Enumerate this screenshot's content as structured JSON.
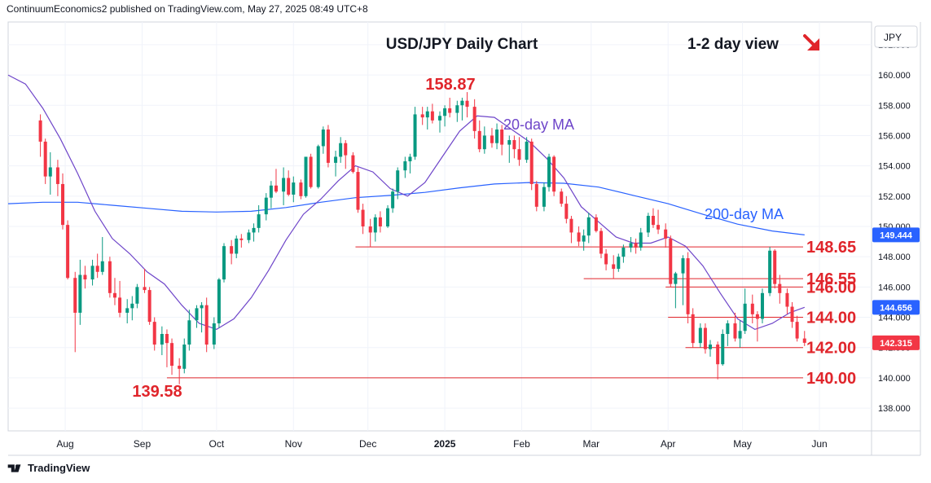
{
  "header": {
    "published": "ContinuumEconomics2 published on TradingView.com, May 27, 2025 08:49 UTC+8"
  },
  "footer": {
    "brand": "TradingView"
  },
  "colors": {
    "up": "#089981",
    "down": "#f23645",
    "ma20": "#6e45c9",
    "ma200": "#2962ff",
    "level": "#e0252b",
    "grid": "#f0f3fa"
  },
  "icons": {
    "direction": "down-right-arrow-icon",
    "logo": "tradingview-logo-icon"
  },
  "chart_data": {
    "type": "candlestick",
    "title": "USD/JPY Daily Chart",
    "view_label": "1-2 day view",
    "currency": "JPY",
    "ylim": [
      136.5,
      163.5
    ],
    "yticks": [
      138,
      140,
      142,
      144,
      146,
      148,
      150,
      152,
      154,
      156,
      158,
      160,
      162
    ],
    "xlabels": [
      "Aug",
      "Sep",
      "Oct",
      "Nov",
      "Dec",
      "2025",
      "Feb",
      "Mar",
      "Apr",
      "May",
      "Jun"
    ],
    "price_tags": [
      {
        "label": "149.444",
        "value": 149.444,
        "kind": "ma200"
      },
      {
        "label": "144.656",
        "value": 144.656,
        "kind": "ma20"
      },
      {
        "label": "142.315",
        "value": 142.315,
        "kind": "last"
      }
    ],
    "levels": [
      {
        "label": "148.65",
        "value": 148.65,
        "from": "2024-11-26"
      },
      {
        "label": "146.55",
        "value": 146.55,
        "from": "2025-02-26"
      },
      {
        "label": "146.00",
        "value": 146.0,
        "from": "2025-03-31"
      },
      {
        "label": "144.00",
        "value": 144.0,
        "from": "2025-04-01"
      },
      {
        "label": "142.00",
        "value": 142.0,
        "from": "2025-04-08"
      },
      {
        "label": "140.00",
        "value": 140.0,
        "from": "2024-09-11"
      }
    ],
    "annotations": [
      {
        "text": "158.87",
        "kind": "high"
      },
      {
        "text": "139.58",
        "kind": "low"
      },
      {
        "text": "20-day MA",
        "kind": "ma20"
      },
      {
        "text": "200-day MA",
        "kind": "ma200"
      }
    ],
    "ma20": [
      [
        "2024-07-09",
        160.0
      ],
      [
        "2024-07-16",
        159.4
      ],
      [
        "2024-07-23",
        157.8
      ],
      [
        "2024-07-30",
        155.8
      ],
      [
        "2024-08-06",
        153.5
      ],
      [
        "2024-08-13",
        151.0
      ],
      [
        "2024-08-20",
        149.2
      ],
      [
        "2024-08-27",
        148.2
      ],
      [
        "2024-09-03",
        147.0
      ],
      [
        "2024-09-10",
        146.2
      ],
      [
        "2024-09-17",
        144.8
      ],
      [
        "2024-09-24",
        143.6
      ],
      [
        "2024-10-01",
        143.2
      ],
      [
        "2024-10-08",
        143.9
      ],
      [
        "2024-10-15",
        145.3
      ],
      [
        "2024-10-22",
        147.1
      ],
      [
        "2024-10-29",
        149.1
      ],
      [
        "2024-11-05",
        150.8
      ],
      [
        "2024-11-12",
        151.8
      ],
      [
        "2024-11-19",
        153.0
      ],
      [
        "2024-11-26",
        154.0
      ],
      [
        "2024-12-03",
        153.6
      ],
      [
        "2024-12-10",
        152.5
      ],
      [
        "2024-12-17",
        152.0
      ],
      [
        "2024-12-24",
        152.9
      ],
      [
        "2024-12-31",
        154.6
      ],
      [
        "2025-01-07",
        156.3
      ],
      [
        "2025-01-14",
        157.3
      ],
      [
        "2025-01-21",
        157.2
      ],
      [
        "2025-01-28",
        156.4
      ],
      [
        "2025-02-04",
        155.6
      ],
      [
        "2025-02-11",
        154.5
      ],
      [
        "2025-02-18",
        153.2
      ],
      [
        "2025-02-25",
        151.3
      ],
      [
        "2025-03-04",
        150.3
      ],
      [
        "2025-03-11",
        149.3
      ],
      [
        "2025-03-18",
        148.9
      ],
      [
        "2025-03-25",
        148.9
      ],
      [
        "2025-04-01",
        149.3
      ],
      [
        "2025-04-08",
        148.7
      ],
      [
        "2025-04-15",
        147.4
      ],
      [
        "2025-04-22",
        145.6
      ],
      [
        "2025-04-29",
        143.9
      ],
      [
        "2025-05-06",
        143.2
      ],
      [
        "2025-05-13",
        143.6
      ],
      [
        "2025-05-20",
        144.3
      ],
      [
        "2025-05-26",
        144.66
      ]
    ],
    "ma200": [
      [
        "2024-07-09",
        151.5
      ],
      [
        "2024-07-23",
        151.6
      ],
      [
        "2024-08-06",
        151.6
      ],
      [
        "2024-08-20",
        151.4
      ],
      [
        "2024-09-03",
        151.2
      ],
      [
        "2024-09-17",
        151.0
      ],
      [
        "2024-10-01",
        150.95
      ],
      [
        "2024-10-15",
        151.0
      ],
      [
        "2024-10-29",
        151.25
      ],
      [
        "2024-11-12",
        151.6
      ],
      [
        "2024-11-26",
        151.9
      ],
      [
        "2024-12-10",
        152.05
      ],
      [
        "2024-12-24",
        152.25
      ],
      [
        "2025-01-07",
        152.55
      ],
      [
        "2025-01-21",
        152.8
      ],
      [
        "2025-02-04",
        152.9
      ],
      [
        "2025-02-18",
        152.85
      ],
      [
        "2025-03-04",
        152.6
      ],
      [
        "2025-03-18",
        152.05
      ],
      [
        "2025-04-01",
        151.5
      ],
      [
        "2025-04-15",
        150.8
      ],
      [
        "2025-04-29",
        150.15
      ],
      [
        "2025-05-13",
        149.7
      ],
      [
        "2025-05-26",
        149.44
      ]
    ],
    "candles": [
      [
        "2024-07-22",
        157.0,
        157.4,
        154.6,
        155.6
      ],
      [
        "2024-07-24",
        155.6,
        155.8,
        152.8,
        153.3
      ],
      [
        "2024-07-26",
        153.3,
        154.9,
        152.1,
        153.9
      ],
      [
        "2024-07-29",
        153.9,
        154.4,
        152.0,
        152.8
      ],
      [
        "2024-07-31",
        152.8,
        153.5,
        149.8,
        150.1
      ],
      [
        "2024-08-02",
        150.1,
        150.4,
        146.5,
        146.6
      ],
      [
        "2024-08-05",
        146.6,
        147.0,
        141.7,
        144.3
      ],
      [
        "2024-08-07",
        144.3,
        147.8,
        143.5,
        146.8
      ],
      [
        "2024-08-09",
        146.8,
        147.4,
        145.9,
        146.5
      ],
      [
        "2024-08-12",
        146.5,
        147.8,
        146.1,
        147.4
      ],
      [
        "2024-08-14",
        147.4,
        148.2,
        146.6,
        147.0
      ],
      [
        "2024-08-16",
        147.0,
        149.3,
        146.8,
        147.7
      ],
      [
        "2024-08-19",
        147.7,
        148.0,
        145.3,
        145.6
      ],
      [
        "2024-08-21",
        145.6,
        146.6,
        144.8,
        145.3
      ],
      [
        "2024-08-23",
        145.3,
        146.4,
        144.0,
        144.3
      ],
      [
        "2024-08-26",
        144.3,
        145.2,
        143.6,
        144.6
      ],
      [
        "2024-08-28",
        144.6,
        145.4,
        143.8,
        144.9
      ],
      [
        "2024-08-30",
        144.9,
        146.2,
        144.6,
        146.0
      ],
      [
        "2024-09-02",
        146.0,
        147.2,
        145.6,
        145.8
      ],
      [
        "2024-09-04",
        145.8,
        146.0,
        143.5,
        143.7
      ],
      [
        "2024-09-06",
        143.7,
        144.0,
        141.8,
        142.2
      ],
      [
        "2024-09-09",
        142.2,
        143.4,
        141.5,
        142.9
      ],
      [
        "2024-09-11",
        142.9,
        143.2,
        140.7,
        142.3
      ],
      [
        "2024-09-13",
        142.3,
        142.6,
        140.2,
        140.8
      ],
      [
        "2024-09-16",
        140.8,
        141.3,
        139.58,
        140.6
      ],
      [
        "2024-09-18",
        140.6,
        142.6,
        140.3,
        142.2
      ],
      [
        "2024-09-20",
        142.2,
        144.5,
        141.8,
        143.8
      ],
      [
        "2024-09-23",
        143.8,
        144.8,
        143.3,
        144.6
      ],
      [
        "2024-09-25",
        144.6,
        145.0,
        143.0,
        144.8
      ],
      [
        "2024-09-27",
        144.8,
        145.3,
        141.7,
        142.2
      ],
      [
        "2024-09-30",
        142.2,
        144.0,
        141.9,
        143.6
      ],
      [
        "2024-10-02",
        143.6,
        146.6,
        143.3,
        146.5
      ],
      [
        "2024-10-04",
        146.5,
        148.9,
        146.3,
        148.7
      ],
      [
        "2024-10-07",
        148.7,
        149.1,
        147.5,
        148.2
      ],
      [
        "2024-10-09",
        148.2,
        149.4,
        147.9,
        149.2
      ],
      [
        "2024-10-11",
        149.2,
        149.5,
        148.6,
        149.1
      ],
      [
        "2024-10-14",
        149.1,
        149.8,
        148.9,
        149.6
      ],
      [
        "2024-10-16",
        149.6,
        150.2,
        149.0,
        149.9
      ],
      [
        "2024-10-18",
        149.9,
        151.4,
        149.6,
        150.8
      ],
      [
        "2024-10-21",
        150.8,
        152.2,
        150.4,
        151.9
      ],
      [
        "2024-10-23",
        151.9,
        153.0,
        151.2,
        152.7
      ],
      [
        "2024-10-25",
        152.7,
        153.8,
        152.2,
        152.3
      ],
      [
        "2024-10-28",
        152.3,
        153.9,
        151.4,
        153.2
      ],
      [
        "2024-10-30",
        153.2,
        153.7,
        152.0,
        152.1
      ],
      [
        "2024-11-01",
        152.1,
        153.3,
        151.6,
        152.9
      ],
      [
        "2024-11-04",
        152.9,
        153.1,
        151.8,
        152.0
      ],
      [
        "2024-11-06",
        152.0,
        154.6,
        151.9,
        154.6
      ],
      [
        "2024-11-08",
        154.6,
        154.8,
        152.5,
        152.6
      ],
      [
        "2024-11-11",
        152.6,
        155.4,
        152.5,
        155.3
      ],
      [
        "2024-11-13",
        155.3,
        156.6,
        154.8,
        156.4
      ],
      [
        "2024-11-15",
        156.4,
        156.7,
        153.9,
        154.2
      ],
      [
        "2024-11-18",
        154.2,
        155.0,
        153.3,
        154.6
      ],
      [
        "2024-11-20",
        154.6,
        155.9,
        154.2,
        155.5
      ],
      [
        "2024-11-22",
        155.5,
        155.7,
        153.8,
        154.7
      ],
      [
        "2024-11-25",
        154.7,
        154.9,
        153.5,
        153.6
      ],
      [
        "2024-11-27",
        153.6,
        153.9,
        150.9,
        151.1
      ],
      [
        "2024-11-29",
        151.1,
        151.5,
        149.5,
        150.0
      ],
      [
        "2024-12-02",
        150.0,
        150.5,
        148.65,
        149.6
      ],
      [
        "2024-12-04",
        149.6,
        150.8,
        149.0,
        150.6
      ],
      [
        "2024-12-06",
        150.6,
        151.0,
        149.6,
        150.0
      ],
      [
        "2024-12-09",
        150.0,
        151.4,
        149.9,
        151.2
      ],
      [
        "2024-12-11",
        151.2,
        152.5,
        150.9,
        152.3
      ],
      [
        "2024-12-13",
        152.3,
        153.9,
        151.8,
        153.7
      ],
      [
        "2024-12-16",
        153.7,
        154.6,
        153.2,
        154.3
      ],
      [
        "2024-12-18",
        154.3,
        154.8,
        153.5,
        154.6
      ],
      [
        "2024-12-20",
        154.6,
        157.9,
        154.4,
        157.4
      ],
      [
        "2024-12-23",
        157.4,
        157.9,
        156.7,
        157.2
      ],
      [
        "2024-12-25",
        157.2,
        157.9,
        156.4,
        157.6
      ],
      [
        "2024-12-27",
        157.6,
        158.1,
        156.8,
        157.0
      ],
      [
        "2024-12-30",
        157.0,
        157.6,
        156.2,
        157.3
      ],
      [
        "2025-01-01",
        157.3,
        158.0,
        156.6,
        157.8
      ],
      [
        "2025-01-03",
        157.8,
        158.5,
        157.2,
        157.5
      ],
      [
        "2025-01-06",
        157.5,
        158.3,
        156.9,
        158.0
      ],
      [
        "2025-01-08",
        158.0,
        158.5,
        157.0,
        158.3
      ],
      [
        "2025-01-10",
        158.3,
        158.87,
        157.2,
        157.9
      ],
      [
        "2025-01-13",
        157.9,
        158.4,
        155.8,
        156.3
      ],
      [
        "2025-01-15",
        156.3,
        157.0,
        154.9,
        155.1
      ],
      [
        "2025-01-17",
        155.1,
        156.6,
        154.8,
        156.0
      ],
      [
        "2025-01-20",
        156.0,
        156.5,
        155.2,
        155.5
      ],
      [
        "2025-01-22",
        155.5,
        156.8,
        155.1,
        156.4
      ],
      [
        "2025-01-24",
        156.4,
        156.7,
        154.7,
        155.4
      ],
      [
        "2025-01-27",
        155.4,
        156.0,
        154.2,
        155.7
      ],
      [
        "2025-01-29",
        155.7,
        156.0,
        154.5,
        155.1
      ],
      [
        "2025-01-31",
        155.1,
        155.9,
        154.0,
        154.4
      ],
      [
        "2025-02-03",
        154.4,
        155.9,
        154.2,
        155.6
      ],
      [
        "2025-02-05",
        155.6,
        155.8,
        152.4,
        152.8
      ],
      [
        "2025-02-07",
        152.8,
        153.0,
        151.0,
        151.3
      ],
      [
        "2025-02-10",
        151.3,
        152.9,
        151.0,
        152.6
      ],
      [
        "2025-02-12",
        152.6,
        154.8,
        152.3,
        154.6
      ],
      [
        "2025-02-14",
        154.6,
        154.7,
        152.0,
        152.3
      ],
      [
        "2025-02-17",
        152.3,
        152.5,
        151.3,
        151.5
      ],
      [
        "2025-02-19",
        151.5,
        152.0,
        150.2,
        150.5
      ],
      [
        "2025-02-21",
        150.5,
        150.7,
        148.9,
        149.6
      ],
      [
        "2025-02-24",
        149.6,
        150.0,
        148.7,
        149.0
      ],
      [
        "2025-02-26",
        149.0,
        149.8,
        148.4,
        149.4
      ],
      [
        "2025-02-28",
        149.4,
        150.9,
        148.9,
        150.6
      ],
      [
        "2025-03-03",
        150.6,
        150.8,
        149.6,
        149.7
      ],
      [
        "2025-03-05",
        149.7,
        149.9,
        147.9,
        148.2
      ],
      [
        "2025-03-07",
        148.2,
        148.5,
        147.1,
        147.5
      ],
      [
        "2025-03-10",
        147.5,
        148.1,
        146.55,
        147.2
      ],
      [
        "2025-03-12",
        147.2,
        148.2,
        147.0,
        148.0
      ],
      [
        "2025-03-14",
        148.0,
        148.8,
        147.6,
        148.6
      ],
      [
        "2025-03-17",
        148.6,
        149.3,
        148.3,
        148.9
      ],
      [
        "2025-03-19",
        148.9,
        149.2,
        148.2,
        148.6
      ],
      [
        "2025-03-21",
        148.6,
        149.9,
        148.4,
        149.6
      ],
      [
        "2025-03-24",
        149.6,
        150.9,
        149.3,
        150.7
      ],
      [
        "2025-03-26",
        150.7,
        151.2,
        149.9,
        150.1
      ],
      [
        "2025-03-28",
        150.1,
        151.1,
        149.5,
        149.8
      ],
      [
        "2025-03-31",
        149.8,
        150.2,
        148.6,
        149.2
      ],
      [
        "2025-04-02",
        149.2,
        149.4,
        146.0,
        146.2
      ],
      [
        "2025-04-04",
        146.2,
        147.0,
        144.6,
        146.9
      ],
      [
        "2025-04-07",
        146.9,
        148.1,
        144.8,
        147.9
      ],
      [
        "2025-04-09",
        147.9,
        148.3,
        143.6,
        144.2
      ],
      [
        "2025-04-11",
        144.2,
        144.6,
        142.0,
        142.3
      ],
      [
        "2025-04-14",
        142.3,
        143.6,
        142.0,
        143.3
      ],
      [
        "2025-04-16",
        143.3,
        143.6,
        141.6,
        141.9
      ],
      [
        "2025-04-18",
        141.9,
        142.5,
        141.4,
        142.2
      ],
      [
        "2025-04-21",
        142.2,
        142.4,
        139.9,
        140.9
      ],
      [
        "2025-04-23",
        140.9,
        143.2,
        140.8,
        142.9
      ],
      [
        "2025-04-25",
        142.9,
        143.8,
        142.1,
        143.6
      ],
      [
        "2025-04-28",
        143.6,
        144.3,
        142.4,
        142.6
      ],
      [
        "2025-04-30",
        142.6,
        143.8,
        142.0,
        143.1
      ],
      [
        "2025-05-02",
        143.1,
        145.9,
        142.9,
        144.9
      ],
      [
        "2025-05-05",
        144.9,
        145.5,
        143.6,
        144.2
      ],
      [
        "2025-05-07",
        144.2,
        144.4,
        142.4,
        143.9
      ],
      [
        "2025-05-09",
        143.9,
        145.9,
        143.6,
        145.6
      ],
      [
        "2025-05-12",
        145.6,
        148.65,
        145.4,
        148.4
      ],
      [
        "2025-05-14",
        148.4,
        148.5,
        145.9,
        146.2
      ],
      [
        "2025-05-16",
        146.2,
        146.8,
        144.9,
        145.6
      ],
      [
        "2025-05-19",
        145.6,
        145.9,
        144.2,
        144.7
      ],
      [
        "2025-05-21",
        144.7,
        145.0,
        143.3,
        143.7
      ],
      [
        "2025-05-23",
        143.7,
        144.1,
        142.4,
        142.6
      ],
      [
        "2025-05-26",
        142.6,
        143.1,
        142.1,
        142.315
      ]
    ]
  }
}
